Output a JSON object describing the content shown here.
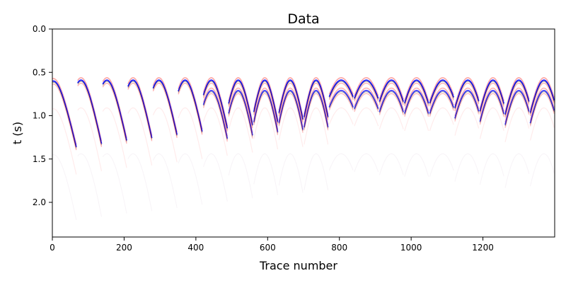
{
  "chart_data": {
    "type": "heatmap",
    "title": "Data",
    "xlabel": "Trace number",
    "ylabel": "t (s)",
    "xlim": [
      0,
      1400
    ],
    "ylim": [
      0.0,
      2.4
    ],
    "y_inverted": true,
    "grid": false,
    "x_ticks": [
      {
        "value": 0,
        "label": "0"
      },
      {
        "value": 200,
        "label": "200"
      },
      {
        "value": 400,
        "label": "400"
      },
      {
        "value": 600,
        "label": "600"
      },
      {
        "value": 800,
        "label": "800"
      },
      {
        "value": 1000,
        "label": "1000"
      },
      {
        "value": 1200,
        "label": "1200"
      }
    ],
    "y_ticks": [
      {
        "value": 0.0,
        "label": "0.0"
      },
      {
        "value": 0.5,
        "label": "0.5"
      },
      {
        "value": 1.0,
        "label": "1.0"
      },
      {
        "value": 1.5,
        "label": "1.5"
      },
      {
        "value": 2.0,
        "label": "2.0"
      }
    ],
    "colormap": {
      "negative": "#0000ff",
      "zero": "#ffffff",
      "positive": "#ff0000"
    },
    "trace_ink": "#222222",
    "gathers": [
      {
        "x_start": 0,
        "x_end": 70,
        "apex_trace": 3,
        "apex_t": 0.6,
        "far_t": 1.42,
        "events": 1
      },
      {
        "x_start": 70,
        "x_end": 140,
        "apex_trace": 80,
        "apex_t": 0.59,
        "far_t": 1.38,
        "events": 1
      },
      {
        "x_start": 140,
        "x_end": 210,
        "apex_trace": 152,
        "apex_t": 0.59,
        "far_t": 1.34,
        "events": 1
      },
      {
        "x_start": 210,
        "x_end": 280,
        "apex_trace": 225,
        "apex_t": 0.59,
        "far_t": 1.31,
        "events": 1
      },
      {
        "x_start": 280,
        "x_end": 350,
        "apex_trace": 297,
        "apex_t": 0.59,
        "far_t": 1.27,
        "events": 1
      },
      {
        "x_start": 350,
        "x_end": 420,
        "apex_trace": 370,
        "apex_t": 0.59,
        "far_t": 1.23,
        "events": 1
      },
      {
        "x_start": 420,
        "x_end": 490,
        "apex_trace": 443,
        "apex_t": 0.59,
        "far_t": 1.19,
        "events": 2
      },
      {
        "x_start": 490,
        "x_end": 560,
        "apex_trace": 518,
        "apex_t": 0.59,
        "far_t": 1.15,
        "events": 2
      },
      {
        "x_start": 560,
        "x_end": 630,
        "apex_trace": 592,
        "apex_t": 0.59,
        "far_t": 1.11,
        "events": 2
      },
      {
        "x_start": 630,
        "x_end": 700,
        "apex_trace": 663,
        "apex_t": 0.59,
        "far_t": 1.08,
        "events": 2
      },
      {
        "x_start": 700,
        "x_end": 770,
        "apex_trace": 735,
        "apex_t": 0.59,
        "far_t": 1.05,
        "events": 2
      },
      {
        "x_start": 770,
        "x_end": 840,
        "apex_trace": 805,
        "apex_t": 0.59,
        "far_t": 0.8,
        "events": 2
      },
      {
        "x_start": 840,
        "x_end": 910,
        "apex_trace": 875,
        "apex_t": 0.59,
        "far_t": 0.82,
        "events": 2
      },
      {
        "x_start": 910,
        "x_end": 980,
        "apex_trace": 945,
        "apex_t": 0.59,
        "far_t": 0.86,
        "events": 2
      },
      {
        "x_start": 980,
        "x_end": 1050,
        "apex_trace": 1015,
        "apex_t": 0.59,
        "far_t": 0.88,
        "events": 2
      },
      {
        "x_start": 1050,
        "x_end": 1120,
        "apex_trace": 1088,
        "apex_t": 0.59,
        "far_t": 0.88,
        "events": 2
      },
      {
        "x_start": 1120,
        "x_end": 1190,
        "apex_trace": 1158,
        "apex_t": 0.59,
        "far_t": 0.94,
        "events": 2
      },
      {
        "x_start": 1190,
        "x_end": 1260,
        "apex_trace": 1228,
        "apex_t": 0.59,
        "far_t": 0.98,
        "events": 2
      },
      {
        "x_start": 1260,
        "x_end": 1330,
        "apex_trace": 1300,
        "apex_t": 0.59,
        "far_t": 1.02,
        "events": 2
      },
      {
        "x_start": 1330,
        "x_end": 1400,
        "apex_trace": 1370,
        "apex_t": 0.59,
        "far_t": 1.0,
        "events": 2
      }
    ]
  }
}
